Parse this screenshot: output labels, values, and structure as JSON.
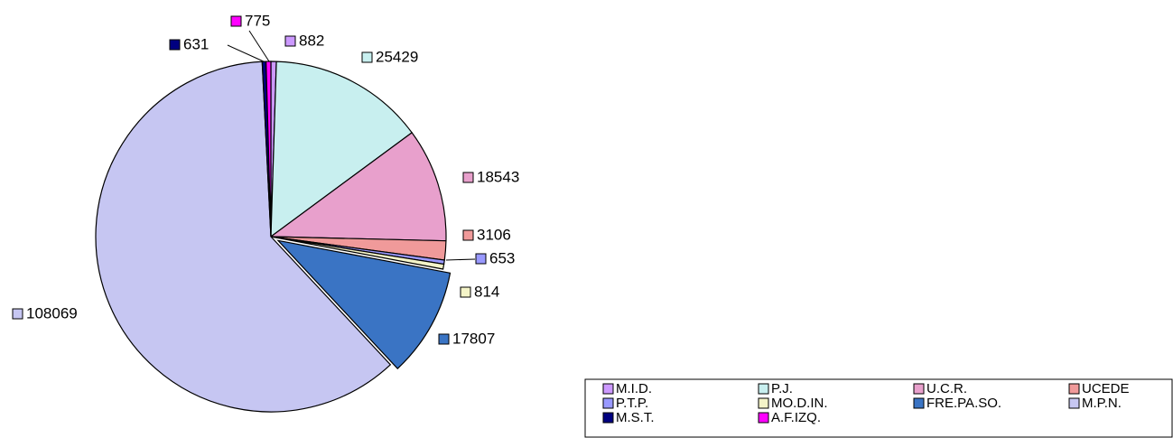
{
  "chart_data": {
    "type": "pie",
    "categories": [
      "M.I.D.",
      "P.J.",
      "U.C.R.",
      "UCEDE",
      "P.T.P.",
      "MO.D.IN.",
      "FRE.PA.SO.",
      "M.P.N.",
      "M.S.T.",
      "A.F.IZQ."
    ],
    "values": [
      882,
      25429,
      18543,
      3106,
      653,
      814,
      17807,
      108069,
      631,
      775
    ],
    "colors": [
      "#cc99ff",
      "#c8efef",
      "#e8a0cc",
      "#f09a9a",
      "#9999ff",
      "#f4f4c8",
      "#3a74c4",
      "#c6c6f2",
      "#000080",
      "#ff00ff"
    ],
    "legend": "bottom-right"
  }
}
